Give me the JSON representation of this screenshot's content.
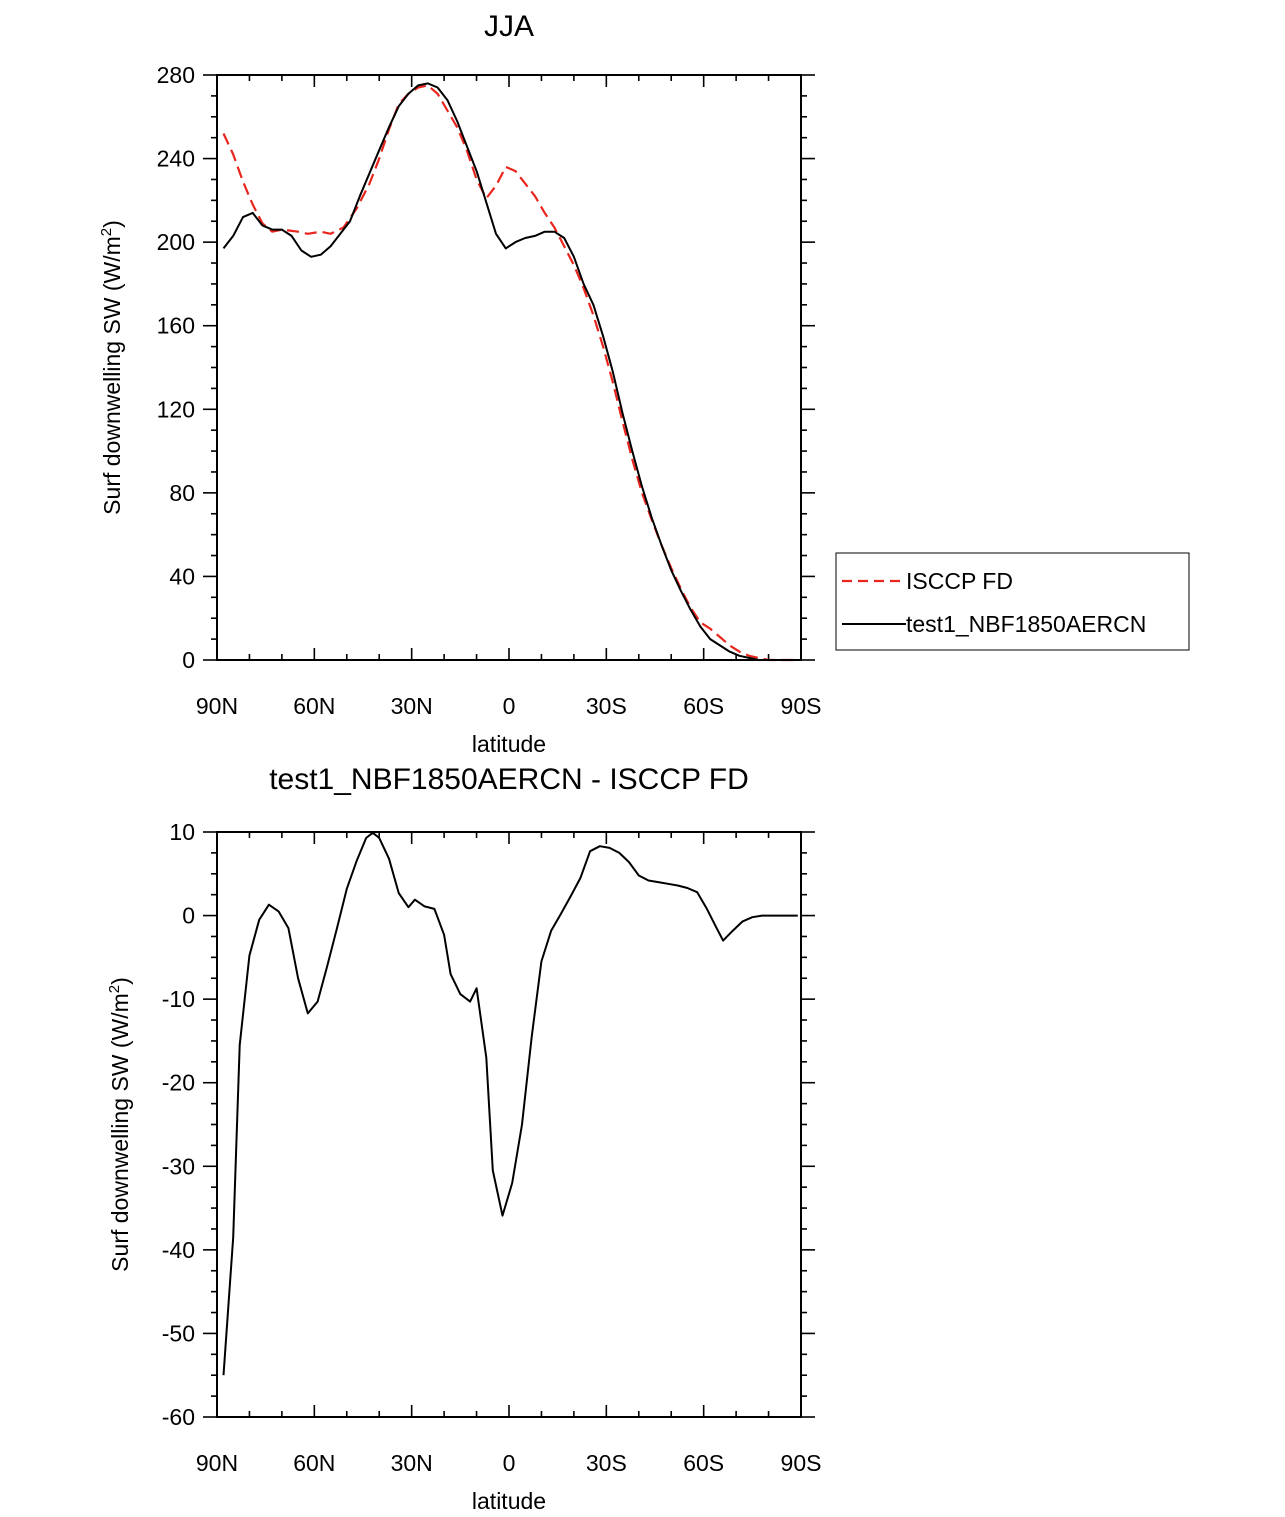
{
  "chart_data": [
    {
      "type": "line",
      "title": "JJA",
      "xlabel": "latitude",
      "ylabel": "Surf downwelling SW (W/m",
      "ylabel_sup": "2",
      "ylabel_close": ")",
      "xlim": [
        90,
        -90
      ],
      "ylim": [
        0,
        280
      ],
      "grid": false,
      "legend_position": "right",
      "x_ticks": [
        {
          "value": 90,
          "label": "90N"
        },
        {
          "value": 60,
          "label": "60N"
        },
        {
          "value": 30,
          "label": "30N"
        },
        {
          "value": 0,
          "label": "0"
        },
        {
          "value": -30,
          "label": "30S"
        },
        {
          "value": -60,
          "label": "60S"
        },
        {
          "value": -90,
          "label": "90S"
        }
      ],
      "y_ticks": [
        {
          "value": 0,
          "label": "0"
        },
        {
          "value": 40,
          "label": "40"
        },
        {
          "value": 80,
          "label": "80"
        },
        {
          "value": 120,
          "label": "120"
        },
        {
          "value": 160,
          "label": "160"
        },
        {
          "value": 200,
          "label": "200"
        },
        {
          "value": 240,
          "label": "240"
        },
        {
          "value": 280,
          "label": "280"
        }
      ],
      "series": [
        {
          "name": "ISCCP FD",
          "color": "#e8261e",
          "dash": "dashed",
          "points": [
            [
              88,
              252
            ],
            [
              85,
              242
            ],
            [
              82,
              229
            ],
            [
              79,
              218
            ],
            [
              76,
              209
            ],
            [
              73,
              205
            ],
            [
              70,
              206
            ],
            [
              65,
              205
            ],
            [
              62,
              204
            ],
            [
              58,
              205
            ],
            [
              55,
              204
            ],
            [
              51,
              207
            ],
            [
              47,
              216
            ],
            [
              43,
              228
            ],
            [
              40,
              240
            ],
            [
              37,
              254
            ],
            [
              34,
              266
            ],
            [
              31,
              271
            ],
            [
              28,
              274
            ],
            [
              25,
              275
            ],
            [
              22,
              271
            ],
            [
              19,
              263
            ],
            [
              16,
              255
            ],
            [
              13,
              244
            ],
            [
              10,
              230
            ],
            [
              7,
              221
            ],
            [
              4,
              227
            ],
            [
              1,
              236
            ],
            [
              -2,
              234
            ],
            [
              -5,
              228
            ],
            [
              -8,
              222
            ],
            [
              -11,
              214
            ],
            [
              -14,
              207
            ],
            [
              -17,
              198
            ],
            [
              -20,
              189
            ],
            [
              -23,
              178
            ],
            [
              -26,
              165
            ],
            [
              -29,
              150
            ],
            [
              -32,
              133
            ],
            [
              -35,
              114
            ],
            [
              -38,
              96
            ],
            [
              -41,
              80
            ],
            [
              -44,
              67
            ],
            [
              -47,
              55
            ],
            [
              -50,
              44
            ],
            [
              -53,
              34
            ],
            [
              -56,
              25
            ],
            [
              -59,
              18
            ],
            [
              -62,
              15
            ],
            [
              -65,
              11
            ],
            [
              -68,
              7
            ],
            [
              -71,
              4
            ],
            [
              -74,
              2
            ],
            [
              -77,
              1
            ],
            [
              -80,
              0
            ],
            [
              -85,
              0
            ],
            [
              -89,
              0
            ]
          ]
        },
        {
          "name": "test1_NBF1850AERCN",
          "color": "#000000",
          "dash": "solid",
          "points": [
            [
              88,
              197
            ],
            [
              85,
              203
            ],
            [
              82,
              212
            ],
            [
              79,
              214
            ],
            [
              76,
              208
            ],
            [
              73,
              206
            ],
            [
              70,
              206
            ],
            [
              67,
              203
            ],
            [
              64,
              196
            ],
            [
              61,
              193
            ],
            [
              58,
              194
            ],
            [
              55,
              198
            ],
            [
              52,
              204
            ],
            [
              49,
              210
            ],
            [
              46,
              222
            ],
            [
              43,
              233
            ],
            [
              40,
              244
            ],
            [
              37,
              255
            ],
            [
              34,
              265
            ],
            [
              31,
              271
            ],
            [
              28,
              275
            ],
            [
              25,
              276
            ],
            [
              22,
              274
            ],
            [
              19,
              268
            ],
            [
              16,
              258
            ],
            [
              13,
              246
            ],
            [
              10,
              234
            ],
            [
              7,
              219
            ],
            [
              4,
              204
            ],
            [
              1,
              197
            ],
            [
              -2,
              200
            ],
            [
              -5,
              202
            ],
            [
              -8,
              203
            ],
            [
              -11,
              205
            ],
            [
              -14,
              205
            ],
            [
              -17,
              202
            ],
            [
              -20,
              193
            ],
            [
              -23,
              180
            ],
            [
              -26,
              170
            ],
            [
              -29,
              155
            ],
            [
              -32,
              138
            ],
            [
              -35,
              118
            ],
            [
              -38,
              100
            ],
            [
              -41,
              83
            ],
            [
              -44,
              68
            ],
            [
              -47,
              55
            ],
            [
              -50,
              43
            ],
            [
              -53,
              33
            ],
            [
              -56,
              24
            ],
            [
              -59,
              16
            ],
            [
              -62,
              10
            ],
            [
              -65,
              7
            ],
            [
              -68,
              4
            ],
            [
              -71,
              2
            ],
            [
              -74,
              1
            ],
            [
              -77,
              0
            ],
            [
              -80,
              0
            ],
            [
              -85,
              0
            ],
            [
              -89,
              0
            ]
          ]
        }
      ]
    },
    {
      "type": "line",
      "title": "test1_NBF1850AERCN - ISCCP FD",
      "xlabel": "latitude",
      "ylabel": "Surf downwelling SW (W/m",
      "ylabel_sup": "2",
      "ylabel_close": ")",
      "xlim": [
        90,
        -90
      ],
      "ylim": [
        -60,
        10
      ],
      "grid": false,
      "x_ticks": [
        {
          "value": 90,
          "label": "90N"
        },
        {
          "value": 60,
          "label": "60N"
        },
        {
          "value": 30,
          "label": "30N"
        },
        {
          "value": 0,
          "label": "0"
        },
        {
          "value": -30,
          "label": "30S"
        },
        {
          "value": -60,
          "label": "60S"
        },
        {
          "value": -90,
          "label": "90S"
        }
      ],
      "y_ticks": [
        {
          "value": 10,
          "label": "10"
        },
        {
          "value": 0,
          "label": "0"
        },
        {
          "value": -10,
          "label": "-10"
        },
        {
          "value": -20,
          "label": "-20"
        },
        {
          "value": -30,
          "label": "-30"
        },
        {
          "value": -40,
          "label": "-40"
        },
        {
          "value": -50,
          "label": "-50"
        },
        {
          "value": -60,
          "label": "-60"
        }
      ],
      "series": [
        {
          "color": "#000000",
          "dash": "solid",
          "points": [
            [
              88,
              -55
            ],
            [
              85,
              -38.5
            ],
            [
              83,
              -15.5
            ],
            [
              80,
              -4.8
            ],
            [
              77,
              -0.5
            ],
            [
              74,
              1.3
            ],
            [
              71,
              0.5
            ],
            [
              68,
              -1.5
            ],
            [
              65,
              -7.5
            ],
            [
              62,
              -11.7
            ],
            [
              59,
              -10.3
            ],
            [
              56,
              -6
            ],
            [
              53,
              -1.5
            ],
            [
              50,
              3.2
            ],
            [
              47,
              6.5
            ],
            [
              44,
              9.3
            ],
            [
              42,
              9.9
            ],
            [
              40,
              9.3
            ],
            [
              37,
              6.8
            ],
            [
              34,
              2.7
            ],
            [
              31,
              1
            ],
            [
              29,
              1.9
            ],
            [
              26,
              1.1
            ],
            [
              23,
              0.8
            ],
            [
              20,
              -2.3
            ],
            [
              18,
              -7
            ],
            [
              15,
              -9.4
            ],
            [
              12,
              -10.3
            ],
            [
              10,
              -8.7
            ],
            [
              7,
              -17
            ],
            [
              5,
              -30.5
            ],
            [
              2,
              -35.9
            ],
            [
              -1,
              -32
            ],
            [
              -4,
              -25
            ],
            [
              -7,
              -14.5
            ],
            [
              -10,
              -5.5
            ],
            [
              -13,
              -1.8
            ],
            [
              -16,
              0.2
            ],
            [
              -19,
              2.3
            ],
            [
              -22,
              4.5
            ],
            [
              -25,
              7.7
            ],
            [
              -28,
              8.3
            ],
            [
              -31,
              8.1
            ],
            [
              -34,
              7.5
            ],
            [
              -37,
              6.4
            ],
            [
              -40,
              4.8
            ],
            [
              -43,
              4.2
            ],
            [
              -46,
              4
            ],
            [
              -49,
              3.8
            ],
            [
              -52,
              3.6
            ],
            [
              -55,
              3.3
            ],
            [
              -58,
              2.8
            ],
            [
              -61,
              0.8
            ],
            [
              -64,
              -1.5
            ],
            [
              -66,
              -3
            ],
            [
              -69,
              -1.8
            ],
            [
              -72,
              -0.7
            ],
            [
              -75,
              -0.2
            ],
            [
              -78,
              0
            ],
            [
              -82,
              0
            ],
            [
              -86,
              0
            ],
            [
              -89,
              0
            ]
          ]
        }
      ]
    }
  ]
}
